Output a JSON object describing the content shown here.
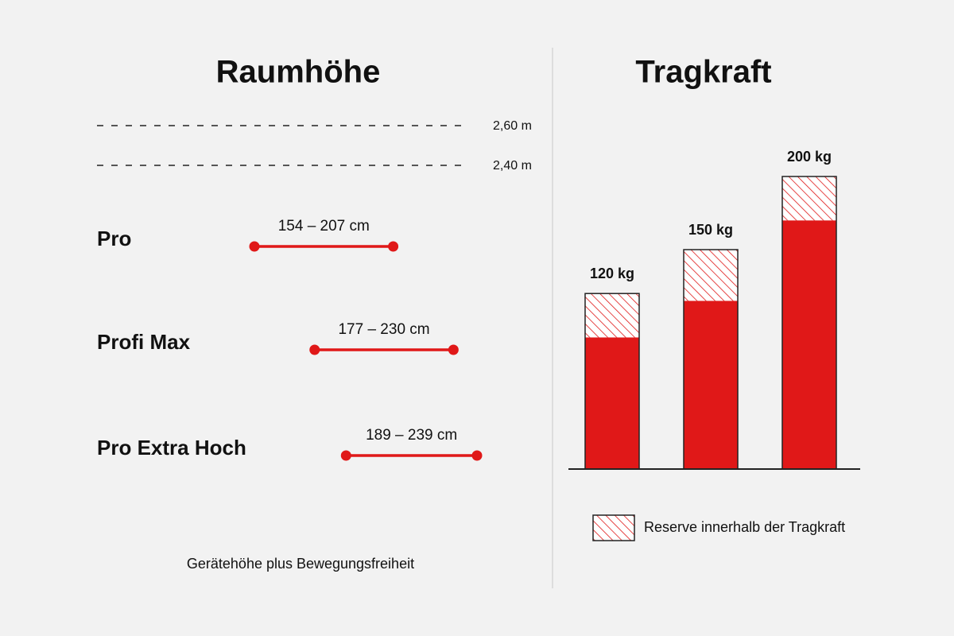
{
  "chart_data": [
    {
      "type": "range",
      "title": "Raumhöhe",
      "categories": [
        "Pro",
        "Profi Max",
        "Pro Extra Hoch"
      ],
      "low": [
        154,
        177,
        189
      ],
      "high": [
        207,
        230,
        239
      ],
      "value_labels": [
        "154 – 207 cm",
        "177 – 230 cm",
        "189 – 239 cm"
      ],
      "color": "#e01818",
      "reference_lines": [
        {
          "value": 260,
          "label": "2,60 m"
        },
        {
          "value": 240,
          "label": "2,40 m"
        }
      ],
      "note": "Gerätehöhe plus Bewegungsfreiheit"
    },
    {
      "type": "stacked-bar",
      "title": "Tragkraft",
      "series": [
        {
          "color": "#e01818",
          "values": [
            90,
            115,
            170
          ]
        },
        {
          "name": "Reserve innerhalb der Tragkraft",
          "color": "#e01818",
          "pattern": "hatch",
          "values": [
            30,
            35,
            30
          ]
        }
      ],
      "totals": [
        120,
        150,
        200
      ],
      "total_labels": [
        "120 kg",
        "150 kg",
        "200 kg"
      ]
    }
  ]
}
